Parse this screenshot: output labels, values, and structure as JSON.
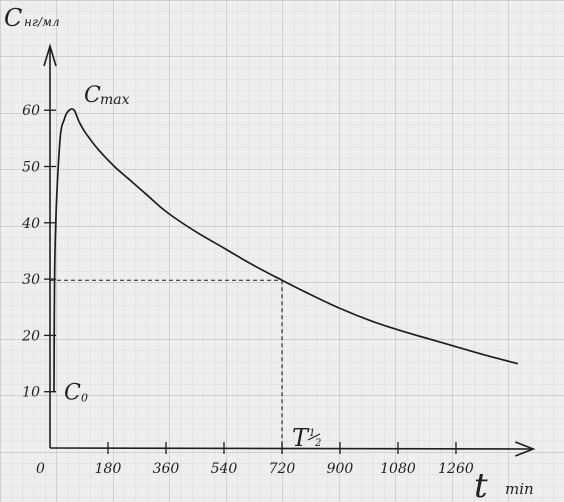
{
  "chart_data": {
    "type": "line",
    "ylabel": "C",
    "yunit": "нг/мл",
    "xlabel": "t",
    "xunit": "min",
    "origin_label": "0",
    "x_ticks": [
      180,
      360,
      540,
      720,
      900,
      1080,
      1260
    ],
    "x_tick_labels": [
      "180",
      "360",
      "540",
      "720",
      "900",
      "1080",
      "1260"
    ],
    "y_ticks": [
      10,
      20,
      30,
      40,
      50,
      60
    ],
    "y_tick_labels": [
      "10",
      "20",
      "30",
      "40",
      "50",
      "60"
    ],
    "xlim": [
      0,
      1500
    ],
    "ylim": [
      0,
      70
    ],
    "grid": true,
    "series": [
      {
        "x": [
          30,
          45,
          60,
          75,
          90,
          110,
          150,
          200,
          250,
          300,
          360,
          450,
          540,
          630,
          720,
          800,
          900,
          1000,
          1080,
          1150,
          1260,
          1350,
          1450
        ],
        "y": [
          54,
          58.5,
          60,
          60,
          58,
          56,
          53,
          50,
          47.5,
          45,
          42,
          38.5,
          35.5,
          32.5,
          29.8,
          27.5,
          24.8,
          22.5,
          21,
          19.8,
          18,
          16.5,
          15
        ]
      }
    ],
    "annotations": {
      "cmax": {
        "label": "C",
        "sub": "max",
        "x": 68,
        "y": 60
      },
      "c0": {
        "label": "C",
        "sub": "0",
        "y": 10
      },
      "half_life": {
        "label": "T",
        "frac_num": "1",
        "frac_den": "2",
        "x": 720,
        "y": 29.8
      }
    }
  }
}
